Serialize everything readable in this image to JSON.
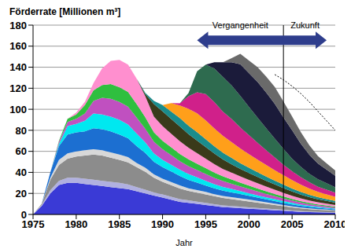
{
  "chart_data": {
    "type": "area",
    "stacked": true,
    "grid": true,
    "y_label": "Förderrate [Millionen m³]",
    "x_label": "Jahr",
    "xlim": [
      1975,
      2010
    ],
    "xticks": [
      1975,
      1980,
      1985,
      1990,
      1995,
      2000,
      2005,
      2010
    ],
    "ylim": [
      0,
      180
    ],
    "yticks": [
      0,
      20,
      40,
      60,
      80,
      100,
      120,
      140,
      160,
      180
    ],
    "vline": 2004,
    "annotations": [
      {
        "text": "Vergangenheit",
        "arrow": "left"
      },
      {
        "text": "Zukunft",
        "arrow": "right"
      }
    ],
    "x": [
      1975,
      1976,
      1977,
      1978,
      1979,
      1980,
      1981,
      1982,
      1983,
      1984,
      1985,
      1986,
      1987,
      1988,
      1989,
      1990,
      1991,
      1992,
      1993,
      1994,
      1995,
      1996,
      1997,
      1998,
      1999,
      2000,
      2001,
      2002,
      2003,
      2004,
      2005,
      2006,
      2007,
      2008,
      2009,
      2010
    ],
    "series": [
      {
        "color": "#3a3ad6",
        "values": [
          0,
          8,
          20,
          28,
          30,
          30,
          29,
          28,
          27,
          26,
          25,
          24,
          22,
          20,
          18,
          16,
          14,
          12,
          11,
          10,
          9,
          8,
          7,
          6.5,
          6,
          5.5,
          5,
          4.5,
          4,
          3.5,
          3,
          2.5,
          2.2,
          2,
          1.8,
          1.5
        ]
      },
      {
        "color": "#b0b0e0",
        "values": [
          0,
          1,
          3,
          4,
          5,
          5,
          5,
          5,
          5,
          5,
          5,
          4.5,
          4,
          3.5,
          3,
          3,
          2.8,
          2.6,
          2.4,
          2.2,
          2,
          1.8,
          1.6,
          1.5,
          1.4,
          1.3,
          1.2,
          1.1,
          1,
          0.9,
          0.8,
          0.7,
          0.6,
          0.5,
          0.5,
          0.4
        ]
      },
      {
        "color": "#8c8c8c",
        "values": [
          0,
          1,
          10,
          15,
          18,
          20,
          22,
          24,
          24,
          23,
          22,
          21,
          19,
          17,
          14,
          12,
          11,
          10,
          9,
          8.5,
          8,
          7.5,
          7,
          6.5,
          6,
          5.5,
          5,
          4.5,
          4,
          3.5,
          3,
          2.6,
          2.3,
          2,
          1.8,
          1.6
        ]
      },
      {
        "color": "#d8d8d8",
        "values": [
          0,
          0,
          2,
          5,
          5,
          5,
          5,
          5,
          5,
          5,
          5,
          5,
          4,
          4,
          3,
          3,
          3,
          3,
          2.5,
          2.5,
          2.5,
          2,
          2,
          2,
          2,
          1.8,
          1.6,
          1.4,
          1.2,
          1,
          0.9,
          0.8,
          0.7,
          0.6,
          0.5,
          0.5
        ]
      },
      {
        "color": "#1c6fd1",
        "values": [
          0,
          0,
          5,
          13,
          18,
          18,
          18,
          20,
          20,
          20,
          19,
          18,
          16,
          14,
          12,
          11,
          10,
          9,
          8,
          7,
          6,
          5.5,
          5,
          4.5,
          4,
          3.6,
          3.2,
          2.8,
          2.5,
          2.2,
          1.9,
          1.6,
          1.4,
          1.2,
          1,
          0.9
        ]
      },
      {
        "color": "#00e8f0",
        "values": [
          0,
          0,
          0,
          2,
          8,
          8,
          10,
          14,
          14,
          14,
          14,
          13,
          12,
          10,
          8,
          7,
          6.5,
          6,
          5.5,
          5,
          4.5,
          4,
          3.6,
          3.2,
          2.8,
          2.5,
          2.2,
          2,
          1.8,
          1.6,
          1.4,
          1.2,
          1,
          0.9,
          0.8,
          0.7
        ]
      },
      {
        "color": "#c050c0",
        "values": [
          0,
          0,
          0,
          2,
          4,
          5,
          7,
          12,
          16,
          17,
          17,
          17,
          15,
          13,
          11,
          10,
          9,
          8,
          7.5,
          7,
          6.5,
          6,
          5.5,
          5,
          4.5,
          4,
          3.6,
          3.2,
          2.8,
          2.5,
          2.2,
          1.9,
          1.6,
          1.4,
          1.2,
          1
        ]
      },
      {
        "color": "#2fbf3f",
        "values": [
          0,
          0,
          0,
          1,
          3,
          4,
          8,
          10,
          12,
          14,
          14,
          14,
          13,
          11,
          9,
          8,
          7.5,
          7,
          6.5,
          6,
          5.5,
          5,
          4.5,
          4,
          3.6,
          3.2,
          2.8,
          2.5,
          2.2,
          1.9,
          1.6,
          1.4,
          1.2,
          1,
          0.9,
          0.8
        ]
      },
      {
        "color": "#ff8fcf",
        "values": [
          0,
          0,
          0,
          0,
          0,
          2,
          3,
          7,
          16,
          22,
          26,
          26,
          24,
          20,
          15,
          14,
          13,
          12,
          11,
          10,
          9,
          8,
          7,
          6.5,
          6,
          5.5,
          5,
          4.5,
          4,
          3.5,
          3,
          2.6,
          2.3,
          2,
          1.8,
          1.6
        ]
      },
      {
        "color": "#3a3a1a",
        "values": [
          0,
          0,
          0,
          0,
          0,
          0,
          0,
          0,
          0,
          0,
          0,
          0,
          0,
          2,
          12,
          14,
          14,
          14,
          13,
          12,
          11,
          10,
          9,
          8,
          7,
          6.5,
          6,
          5.5,
          5,
          4.5,
          4,
          3.6,
          3.2,
          2.8,
          2.5,
          2.2
        ]
      },
      {
        "color": "#1a8c8c",
        "values": [
          0,
          0,
          0,
          0,
          0,
          0,
          0,
          0,
          0,
          0,
          0,
          0,
          0,
          1,
          3,
          6,
          7,
          8,
          8,
          8,
          7.5,
          7,
          6.5,
          6,
          5.5,
          5,
          4.5,
          4,
          3.6,
          3.2,
          2.8,
          2.5,
          2.2,
          2,
          1.8,
          1.6
        ]
      },
      {
        "color": "#ff9f1a",
        "values": [
          0,
          0,
          0,
          0,
          0,
          0,
          0,
          0,
          0,
          0,
          0,
          0,
          0,
          0,
          0,
          0,
          8,
          12,
          16,
          18,
          18,
          17,
          16,
          15,
          14,
          13,
          12,
          11,
          10,
          9,
          8,
          7,
          6,
          5,
          4.5,
          4
        ]
      },
      {
        "color": "#d0208a",
        "values": [
          0,
          0,
          0,
          0,
          0,
          0,
          0,
          0,
          0,
          0,
          0,
          0,
          0,
          0,
          0,
          0,
          0,
          2,
          12,
          20,
          25,
          25,
          23,
          22,
          20,
          18,
          16,
          14,
          12,
          10,
          8.5,
          7,
          6,
          5,
          4.5,
          4
        ]
      },
      {
        "color": "#2e6b4f",
        "values": [
          0,
          0,
          0,
          0,
          0,
          0,
          0,
          0,
          0,
          0,
          0,
          0,
          0,
          0,
          0,
          0,
          0,
          0,
          3,
          20,
          28,
          32,
          33,
          32,
          30,
          27,
          24,
          21,
          18,
          15,
          12,
          10,
          8,
          7,
          6,
          5
        ]
      },
      {
        "color": "#1b1b3a",
        "values": [
          0,
          0,
          0,
          0,
          0,
          0,
          0,
          0,
          0,
          0,
          0,
          0,
          0,
          0,
          0,
          0,
          0,
          0,
          0,
          0,
          0,
          6,
          14,
          22,
          30,
          32,
          34,
          34,
          33,
          30,
          27,
          22,
          18,
          15,
          13,
          11
        ]
      },
      {
        "color": "#6a6a6a",
        "values": [
          0,
          0,
          0,
          0,
          0,
          0,
          0,
          0,
          0,
          0,
          0,
          0,
          0,
          0,
          0,
          0,
          0,
          0,
          0,
          0,
          0,
          0,
          0,
          4,
          10,
          12,
          14,
          15,
          16,
          15,
          13,
          11,
          9,
          7,
          6,
          5
        ]
      },
      {
        "type": "line",
        "line_style": "dotted",
        "color": "#000000",
        "values": [
          null,
          null,
          null,
          null,
          null,
          null,
          null,
          null,
          null,
          null,
          null,
          null,
          null,
          null,
          null,
          null,
          null,
          null,
          null,
          null,
          null,
          null,
          null,
          null,
          null,
          null,
          null,
          null,
          133,
          128,
          122,
          115,
          107,
          98,
          89,
          80
        ]
      }
    ]
  }
}
